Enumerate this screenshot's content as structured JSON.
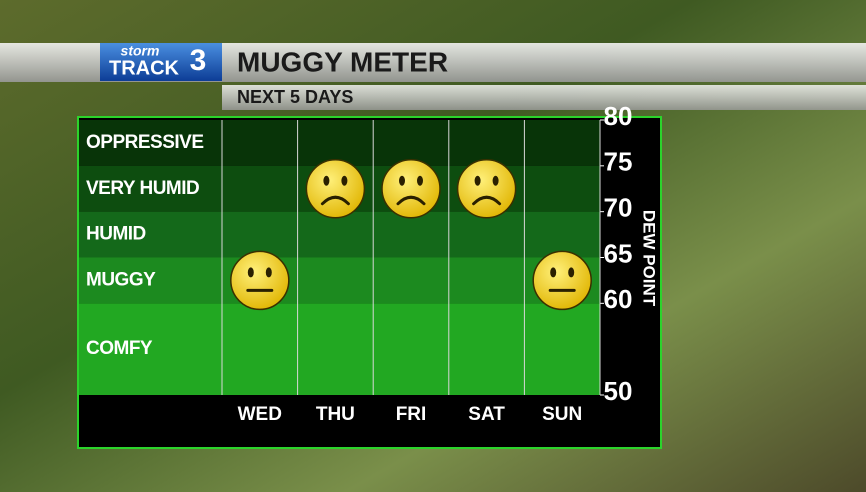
{
  "header": {
    "logo_small": "storm",
    "logo_big": "TRACK",
    "logo_number": "3"
  },
  "chart_data": {
    "type": "face",
    "title": "MUGGY METER",
    "subtitle": "NEXT 5 DAYS",
    "y_label": "DEW POINT",
    "categories": [
      "WED",
      "THU",
      "FRI",
      "SAT",
      "SUN"
    ],
    "values": [
      62.5,
      72.5,
      72.5,
      72.5,
      62.5
    ],
    "moods": [
      "neutral",
      "sad",
      "sad",
      "sad",
      "neutral"
    ],
    "ylim": [
      50,
      80
    ],
    "yticks": [
      50,
      60,
      65,
      70,
      75,
      80
    ],
    "bands": [
      {
        "label": "OPPRESSIVE",
        "from": 75,
        "to": 80,
        "color": "#083408"
      },
      {
        "label": "VERY HUMID",
        "from": 70,
        "to": 75,
        "color": "#0d4d0f"
      },
      {
        "label": "HUMID",
        "from": 65,
        "to": 70,
        "color": "#14691a"
      },
      {
        "label": "MUGGY",
        "from": 60,
        "to": 65,
        "color": "#1c8a1f"
      },
      {
        "label": "COMFY",
        "from": 50,
        "to": 60,
        "color": "#22a822"
      }
    ],
    "face_color": "#f2cc00"
  }
}
